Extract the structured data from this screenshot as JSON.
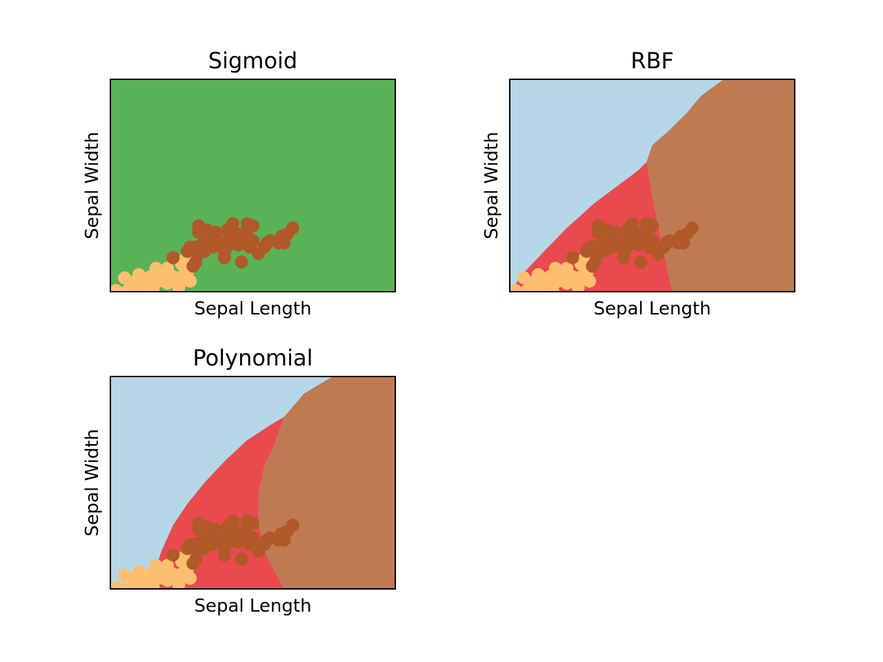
{
  "colors": {
    "light_blue": "#b6d7e8",
    "red": "#e84a4e",
    "brown_region": "#bf7a52",
    "green": "#5ab257",
    "orange": "#fdbf6f",
    "brown_point": "#b15928"
  },
  "chart_data": [
    {
      "type": "scatter",
      "title": "Sigmoid",
      "xlabel": "Sepal Length",
      "ylabel": "Sepal Width",
      "xlim": [
        0,
        100
      ],
      "ylim": [
        0,
        100
      ],
      "ticks": false,
      "regions": [
        {
          "color": "green",
          "points": [
            [
              0,
              0
            ],
            [
              100,
              0
            ],
            [
              100,
              100
            ],
            [
              0,
              100
            ]
          ]
        }
      ],
      "series": [
        {
          "color": "orange",
          "points": [
            [
              2,
              0.5
            ],
            [
              5,
              6.5
            ],
            [
              6,
              0.5
            ],
            [
              8,
              2
            ],
            [
              9,
              5
            ],
            [
              10,
              8
            ],
            [
              11,
              3
            ],
            [
              12,
              1
            ],
            [
              13,
              4
            ],
            [
              14,
              7
            ],
            [
              15,
              1
            ],
            [
              16,
              11
            ],
            [
              17,
              5
            ],
            [
              18,
              9
            ],
            [
              20,
              4
            ],
            [
              20,
              11
            ],
            [
              22,
              7
            ],
            [
              24,
              2
            ],
            [
              25,
              7
            ],
            [
              25,
              13
            ],
            [
              26,
              15
            ],
            [
              27,
              9
            ],
            [
              28,
              5
            ]
          ]
        },
        {
          "color": "brown_point",
          "points": [
            [
              22,
              16
            ],
            [
              27,
              19
            ],
            [
              28,
              21
            ],
            [
              29,
              12
            ],
            [
              30,
              21
            ],
            [
              30,
              14
            ],
            [
              31,
              18
            ],
            [
              31,
              28
            ],
            [
              31,
              31
            ],
            [
              32,
              22
            ],
            [
              33,
              19
            ],
            [
              34,
              23
            ],
            [
              34,
              29
            ],
            [
              35,
              26
            ],
            [
              36,
              21
            ],
            [
              37,
              25
            ],
            [
              37,
              28
            ],
            [
              38,
              23
            ],
            [
              38,
              24
            ],
            [
              39,
              23
            ],
            [
              40,
              16
            ],
            [
              40,
              19
            ],
            [
              41,
              21
            ],
            [
              41,
              29
            ],
            [
              42,
              25
            ],
            [
              43,
              32
            ],
            [
              44,
              25
            ],
            [
              45,
              22
            ],
            [
              45,
              27
            ],
            [
              46,
              14
            ],
            [
              47,
              25
            ],
            [
              48,
              29
            ],
            [
              48,
              32
            ],
            [
              49,
              21
            ],
            [
              50,
              31
            ],
            [
              50,
              24
            ],
            [
              52,
              18
            ],
            [
              54,
              21
            ],
            [
              55,
              23
            ],
            [
              56,
              24
            ],
            [
              59,
              23
            ],
            [
              60,
              26
            ],
            [
              61,
              23
            ],
            [
              62,
              27
            ],
            [
              64,
              30
            ]
          ]
        }
      ]
    },
    {
      "type": "scatter",
      "title": "RBF",
      "xlabel": "Sepal Length",
      "ylabel": "Sepal Width",
      "xlim": [
        0,
        100
      ],
      "ylim": [
        0,
        100
      ],
      "ticks": false,
      "regions": [
        {
          "color": "light_blue",
          "points": [
            [
              0,
              0
            ],
            [
              100,
              0
            ],
            [
              100,
              100
            ],
            [
              0,
              100
            ]
          ]
        },
        {
          "color": "brown_region",
          "points": [
            [
              75,
              100
            ],
            [
              100,
              100
            ],
            [
              100,
              0
            ],
            [
              57,
              0
            ],
            [
              53,
              25
            ],
            [
              50,
              45
            ],
            [
              48,
              61
            ],
            [
              50,
              69
            ],
            [
              56,
              76
            ],
            [
              62,
              84
            ],
            [
              67,
              92
            ]
          ]
        },
        {
          "color": "red",
          "points": [
            [
              0,
              0
            ],
            [
              57,
              0
            ],
            [
              53,
              25
            ],
            [
              50,
              45
            ],
            [
              48,
              61
            ],
            [
              45,
              57
            ],
            [
              38,
              50
            ],
            [
              30,
              42
            ],
            [
              20,
              30
            ],
            [
              12,
              19
            ],
            [
              5,
              9
            ]
          ]
        }
      ],
      "series": [
        {
          "color": "orange",
          "points": [
            [
              2,
              0.5
            ],
            [
              5,
              6.5
            ],
            [
              6,
              0.5
            ],
            [
              8,
              2
            ],
            [
              9,
              5
            ],
            [
              10,
              8
            ],
            [
              11,
              3
            ],
            [
              12,
              1
            ],
            [
              13,
              4
            ],
            [
              14,
              7
            ],
            [
              15,
              1
            ],
            [
              16,
              11
            ],
            [
              17,
              5
            ],
            [
              18,
              9
            ],
            [
              20,
              4
            ],
            [
              20,
              11
            ],
            [
              22,
              7
            ],
            [
              24,
              2
            ],
            [
              25,
              7
            ],
            [
              25,
              13
            ],
            [
              26,
              15
            ],
            [
              27,
              9
            ],
            [
              28,
              5
            ]
          ]
        },
        {
          "color": "brown_point",
          "points": [
            [
              22,
              16
            ],
            [
              27,
              19
            ],
            [
              28,
              21
            ],
            [
              29,
              12
            ],
            [
              30,
              21
            ],
            [
              30,
              14
            ],
            [
              31,
              18
            ],
            [
              31,
              28
            ],
            [
              31,
              31
            ],
            [
              32,
              22
            ],
            [
              33,
              19
            ],
            [
              34,
              23
            ],
            [
              34,
              29
            ],
            [
              35,
              26
            ],
            [
              36,
              21
            ],
            [
              37,
              25
            ],
            [
              37,
              28
            ],
            [
              38,
              23
            ],
            [
              38,
              24
            ],
            [
              39,
              23
            ],
            [
              40,
              16
            ],
            [
              40,
              19
            ],
            [
              41,
              21
            ],
            [
              41,
              29
            ],
            [
              42,
              25
            ],
            [
              43,
              32
            ],
            [
              44,
              25
            ],
            [
              45,
              22
            ],
            [
              45,
              27
            ],
            [
              46,
              14
            ],
            [
              47,
              25
            ],
            [
              48,
              29
            ],
            [
              48,
              32
            ],
            [
              49,
              21
            ],
            [
              50,
              31
            ],
            [
              50,
              24
            ],
            [
              52,
              18
            ],
            [
              54,
              21
            ],
            [
              55,
              23
            ],
            [
              56,
              24
            ],
            [
              59,
              23
            ],
            [
              60,
              26
            ],
            [
              61,
              23
            ],
            [
              62,
              27
            ],
            [
              64,
              30
            ]
          ]
        }
      ]
    },
    {
      "type": "scatter",
      "title": "Polynomial",
      "xlabel": "Sepal Length",
      "ylabel": "Sepal Width",
      "xlim": [
        0,
        100
      ],
      "ylim": [
        0,
        100
      ],
      "ticks": false,
      "regions": [
        {
          "color": "light_blue",
          "points": [
            [
              0,
              0
            ],
            [
              100,
              0
            ],
            [
              100,
              100
            ],
            [
              0,
              100
            ]
          ]
        },
        {
          "color": "brown_region",
          "points": [
            [
              78,
              100
            ],
            [
              100,
              100
            ],
            [
              100,
              0
            ],
            [
              61,
              0
            ],
            [
              55,
              15
            ],
            [
              52,
              30
            ],
            [
              52,
              45
            ],
            [
              54,
              58
            ],
            [
              57,
              66
            ],
            [
              61,
              81
            ],
            [
              68,
              92
            ]
          ]
        },
        {
          "color": "red",
          "points": [
            [
              0,
              0
            ],
            [
              61,
              0
            ],
            [
              55,
              15
            ],
            [
              52,
              30
            ],
            [
              52,
              45
            ],
            [
              54,
              58
            ],
            [
              57,
              66
            ],
            [
              61,
              81
            ],
            [
              56,
              77
            ],
            [
              48,
              70
            ],
            [
              40,
              60
            ],
            [
              33,
              50
            ],
            [
              27,
              40
            ],
            [
              22,
              30
            ],
            [
              18,
              18
            ],
            [
              16,
              10
            ],
            [
              14,
              4
            ],
            [
              12,
              1
            ]
          ]
        }
      ],
      "series": [
        {
          "color": "orange",
          "points": [
            [
              2,
              0.5
            ],
            [
              5,
              6.5
            ],
            [
              6,
              0.5
            ],
            [
              8,
              2
            ],
            [
              9,
              5
            ],
            [
              10,
              8
            ],
            [
              11,
              3
            ],
            [
              12,
              1
            ],
            [
              13,
              4
            ],
            [
              14,
              7
            ],
            [
              15,
              1
            ],
            [
              16,
              11
            ],
            [
              17,
              5
            ],
            [
              18,
              9
            ],
            [
              20,
              4
            ],
            [
              20,
              11
            ],
            [
              22,
              7
            ],
            [
              24,
              2
            ],
            [
              25,
              7
            ],
            [
              25,
              13
            ],
            [
              26,
              15
            ],
            [
              27,
              9
            ],
            [
              28,
              5
            ]
          ]
        },
        {
          "color": "brown_point",
          "points": [
            [
              22,
              16
            ],
            [
              27,
              19
            ],
            [
              28,
              21
            ],
            [
              29,
              12
            ],
            [
              30,
              21
            ],
            [
              30,
              14
            ],
            [
              31,
              18
            ],
            [
              31,
              28
            ],
            [
              31,
              31
            ],
            [
              32,
              22
            ],
            [
              33,
              19
            ],
            [
              34,
              23
            ],
            [
              34,
              29
            ],
            [
              35,
              26
            ],
            [
              36,
              21
            ],
            [
              37,
              25
            ],
            [
              37,
              28
            ],
            [
              38,
              23
            ],
            [
              38,
              24
            ],
            [
              39,
              23
            ],
            [
              40,
              16
            ],
            [
              40,
              19
            ],
            [
              41,
              21
            ],
            [
              41,
              29
            ],
            [
              42,
              25
            ],
            [
              43,
              32
            ],
            [
              44,
              25
            ],
            [
              45,
              22
            ],
            [
              45,
              27
            ],
            [
              46,
              14
            ],
            [
              47,
              25
            ],
            [
              48,
              29
            ],
            [
              48,
              32
            ],
            [
              49,
              21
            ],
            [
              50,
              31
            ],
            [
              50,
              24
            ],
            [
              52,
              18
            ],
            [
              54,
              21
            ],
            [
              55,
              23
            ],
            [
              56,
              24
            ],
            [
              59,
              23
            ],
            [
              60,
              26
            ],
            [
              61,
              23
            ],
            [
              62,
              27
            ],
            [
              64,
              30
            ]
          ]
        }
      ]
    }
  ]
}
